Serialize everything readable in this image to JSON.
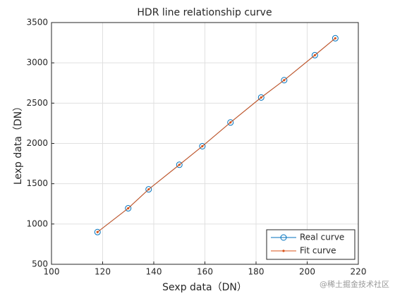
{
  "chart_data": {
    "type": "line",
    "title": "HDR line relationship curve",
    "x_label": "Sexp data（DN）",
    "y_label": "Lexp data（DN）",
    "x": [
      118,
      130,
      138,
      150,
      159,
      170,
      182,
      191,
      203,
      211
    ],
    "series": [
      {
        "name": "Real curve",
        "color": "#0072BD",
        "marker": "circle",
        "values": [
          900,
          1195,
          1430,
          1735,
          1965,
          2260,
          2570,
          2785,
          3095,
          3305
        ]
      },
      {
        "name": "Fit curve",
        "color": "#D95319",
        "marker": "dot",
        "values": [
          900,
          1195,
          1430,
          1735,
          1965,
          2260,
          2570,
          2785,
          3095,
          3305
        ]
      }
    ],
    "xlim": [
      100,
      220
    ],
    "xticks": [
      100,
      120,
      140,
      160,
      180,
      200,
      220
    ],
    "ylim": [
      500,
      3500
    ],
    "yticks": [
      500,
      1000,
      1500,
      2000,
      2500,
      3000,
      3500
    ],
    "grid": true,
    "legend": "southeast",
    "watermark": "@稀土掘金技术社区"
  }
}
